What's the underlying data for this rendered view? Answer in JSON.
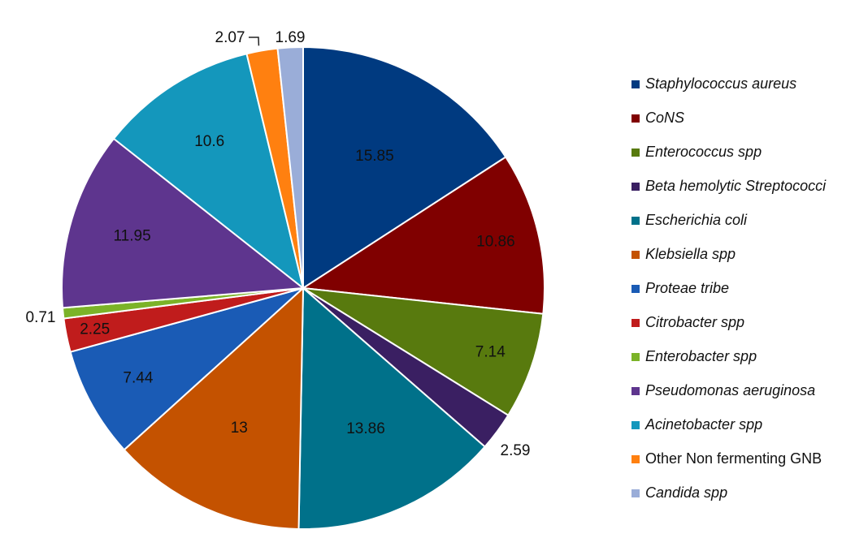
{
  "chart_data": {
    "type": "pie",
    "title": "",
    "legend_position": "right",
    "slices": [
      {
        "label": "Staphylococcus aureus",
        "value": 15.85,
        "color": "#003A80",
        "italic": true
      },
      {
        "label": "CoNS",
        "value": 10.86,
        "color": "#800000",
        "italic": true
      },
      {
        "label": "Enterococcus spp",
        "value": 7.14,
        "color": "#587A0E",
        "italic": true
      },
      {
        "label": "Beta hemolytic Streptococci",
        "value": 2.59,
        "color": "#3A1F62",
        "italic": true
      },
      {
        "label": "Escherichia coli",
        "value": 13.86,
        "color": "#00718A",
        "italic": true
      },
      {
        "label": "Klebsiella spp",
        "value": 13,
        "color": "#C45200",
        "italic": true
      },
      {
        "label": "Proteae tribe",
        "value": 7.44,
        "color": "#1A5BB5",
        "italic": true
      },
      {
        "label": "Citrobacter spp",
        "value": 2.25,
        "color": "#C01C1C",
        "italic": true
      },
      {
        "label": "Enterobacter spp",
        "value": 0.71,
        "color": "#7BB328",
        "italic": true
      },
      {
        "label": "Pseudomonas aeruginosa",
        "value": 11.95,
        "color": "#5E358E",
        "italic": true
      },
      {
        "label": "Acinetobacter spp",
        "value": 10.6,
        "color": "#1497BC",
        "italic": true
      },
      {
        "label": "Other Non fermenting GNB",
        "value": 2.07,
        "color": "#FF8010",
        "italic": false
      },
      {
        "label": "Candida spp",
        "value": 1.69,
        "color": "#9AADD8",
        "italic": true
      }
    ]
  }
}
